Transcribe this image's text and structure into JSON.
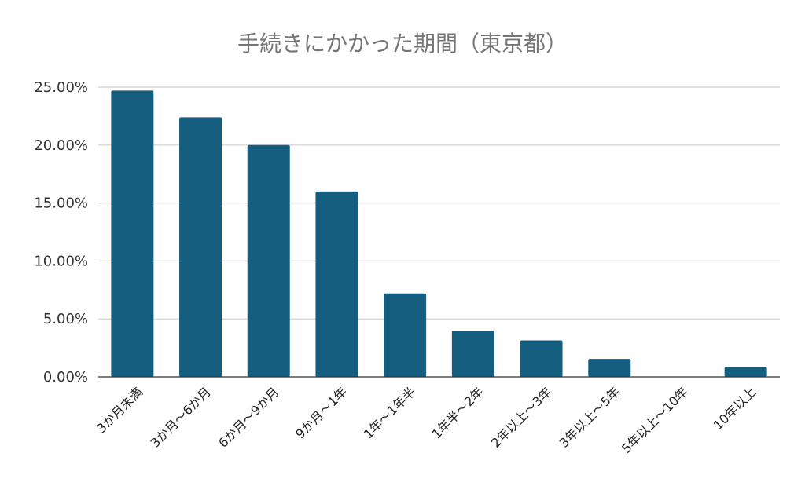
{
  "chart_data": {
    "type": "bar",
    "title": "手続きにかかった期間（東京都）",
    "categories": [
      "3か月未満",
      "3か月～6か月",
      "6か月～9か月",
      "9か月～1年",
      "1年～1年半",
      "1年半～2年",
      "2年以上～3年",
      "3年以上～5年",
      "5年以上～10年",
      "10年以上"
    ],
    "values": [
      24.7,
      22.4,
      20.0,
      16.0,
      7.2,
      4.0,
      3.15,
      1.55,
      0.0,
      0.85
    ],
    "value_unit": "%",
    "xlabel": "",
    "ylabel": "",
    "ylim": [
      0,
      25
    ],
    "yticks": [
      0,
      5,
      10,
      15,
      20,
      25
    ],
    "ytick_labels": [
      "0.00%",
      "5.00%",
      "10.00%",
      "15.00%",
      "20.00%",
      "25.00%"
    ],
    "grid": true,
    "legend": "none",
    "bar_color": "#165e80"
  }
}
